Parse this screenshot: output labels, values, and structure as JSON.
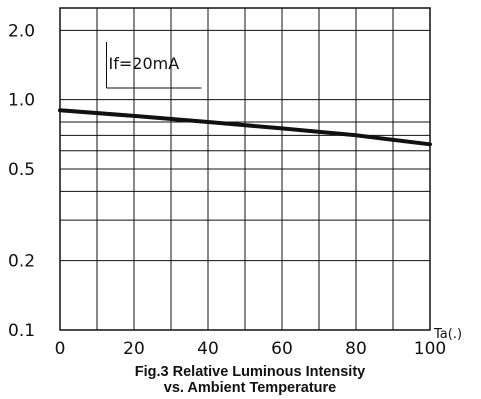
{
  "chart_data": {
    "type": "line",
    "caption_line1": "Fig.3 Relative Luminous Intensity",
    "caption_line2": "vs. Ambient Temperature",
    "xlabel": "Ta(.)",
    "ylabel": "",
    "x_scale": "linear",
    "y_scale": "log",
    "xlim": [
      0,
      100
    ],
    "ylim": [
      0.1,
      2.5
    ],
    "x_ticks": [
      0,
      20,
      40,
      60,
      80,
      100
    ],
    "x_tick_labels": [
      "0",
      "20",
      "40",
      "60",
      "80",
      "100"
    ],
    "y_ticks": [
      0.1,
      0.2,
      0.5,
      1.0,
      2.0
    ],
    "y_tick_labels": [
      "0.1",
      "0.2",
      "0.5",
      "1.0",
      "2.0"
    ],
    "minor_y_gridlines": [
      0.3,
      0.4,
      0.6,
      0.7,
      0.8
    ],
    "grid": true,
    "annotation": "If=20mA",
    "series": [
      {
        "x": [
          0,
          20,
          40,
          60,
          80,
          100
        ],
        "y": [
          0.9,
          0.85,
          0.8,
          0.75,
          0.7,
          0.64
        ]
      }
    ]
  }
}
